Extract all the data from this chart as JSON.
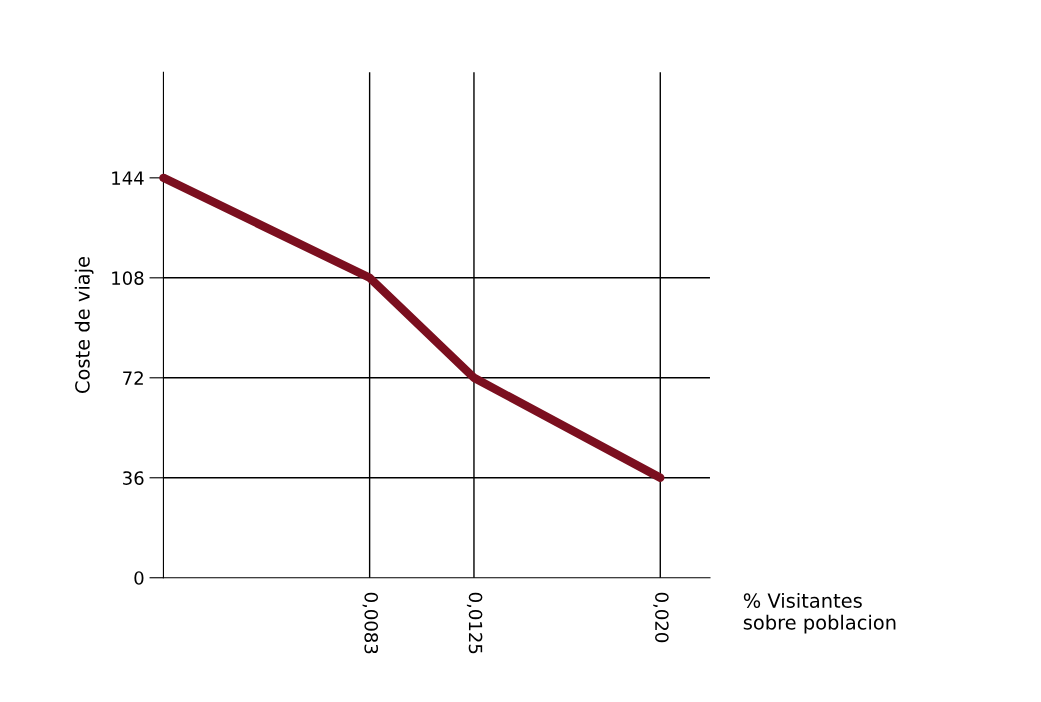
{
  "chart_data": {
    "type": "line",
    "xlabel": "% Visitantes\nsobre poblacion",
    "ylabel": "Coste de viaje",
    "x": [
      0,
      0.0083,
      0.0125,
      0.02
    ],
    "series": [
      {
        "color": "#7b0f1f",
        "values": [
          144,
          108,
          72,
          36
        ]
      }
    ],
    "xlim": [
      0,
      0.022
    ],
    "xticks": [
      {
        "value": 0.0083,
        "label": "0,0083"
      },
      {
        "value": 0.0125,
        "label": "0,0125"
      },
      {
        "value": 0.02,
        "label": "0,020"
      }
    ],
    "ylim": [
      0,
      182
    ],
    "yticks": [
      0,
      36,
      72,
      108,
      144
    ],
    "ref_lines": [
      {
        "axis": "x",
        "value": 0.0083,
        "color": "#000000"
      },
      {
        "axis": "x",
        "value": 0.0125,
        "color": "#000000"
      },
      {
        "axis": "x",
        "value": 0.02,
        "color": "#000000"
      },
      {
        "axis": "y",
        "value": 36,
        "color": "#000000"
      },
      {
        "axis": "y",
        "value": 72,
        "color": "#000000"
      },
      {
        "axis": "y",
        "value": 108,
        "color": "#000000"
      }
    ],
    "grid": false,
    "legend": false
  }
}
